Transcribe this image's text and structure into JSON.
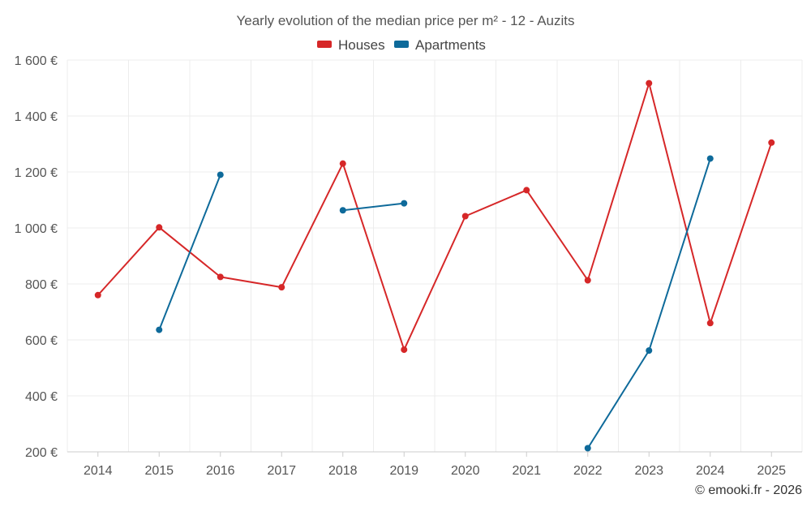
{
  "chart_data": {
    "type": "line",
    "title": "Yearly evolution of the median price per m² - 12 - Auzits",
    "x": [
      "2014",
      "2015",
      "2016",
      "2017",
      "2018",
      "2019",
      "2020",
      "2021",
      "2022",
      "2023",
      "2024",
      "2025"
    ],
    "ylim": [
      200,
      1600
    ],
    "y_ticks": [
      200,
      400,
      600,
      800,
      1000,
      1200,
      1400,
      1600
    ],
    "y_tick_labels": [
      "200 €",
      "400 €",
      "600 €",
      "800 €",
      "1 000 €",
      "1 200 €",
      "1 400 €",
      "1 600 €"
    ],
    "xlabel": "",
    "ylabel": "",
    "grid": true,
    "legend_position": "top-center",
    "series": [
      {
        "name": "Houses",
        "color": "#d62728",
        "values": [
          760,
          1002,
          825,
          788,
          1230,
          565,
          1042,
          1135,
          813,
          1517,
          660,
          1305
        ]
      },
      {
        "name": "Apartments",
        "color": "#0e6a9a",
        "values": [
          null,
          636,
          1190,
          null,
          1063,
          1088,
          null,
          null,
          213,
          562,
          1248,
          null
        ]
      }
    ],
    "credit": "© emooki.fr - 2026"
  }
}
